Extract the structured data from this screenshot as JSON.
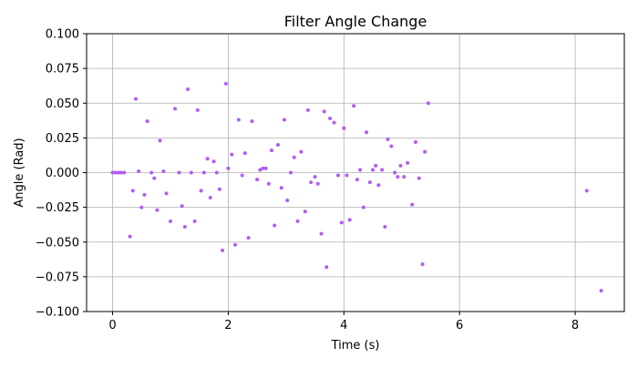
{
  "chart_data": {
    "type": "scatter",
    "title": "Filter Angle Change",
    "xlabel": "Time (s)",
    "ylabel": "Angle (Rad)",
    "xlim": [
      -0.45,
      8.85
    ],
    "ylim": [
      -0.1,
      0.1
    ],
    "x_ticks": [
      0,
      2,
      4,
      6,
      8
    ],
    "y_ticks": [
      -0.1,
      -0.075,
      -0.05,
      -0.025,
      0.0,
      0.025,
      0.05,
      0.075,
      0.1
    ],
    "x_tick_labels": [
      "0",
      "2",
      "4",
      "6",
      "8"
    ],
    "y_tick_labels": [
      "−0.100",
      "−0.075",
      "−0.050",
      "−0.025",
      "0.000",
      "0.025",
      "0.050",
      "0.075",
      "0.100"
    ],
    "grid": true,
    "marker_color": "#b05cf5",
    "series": [
      {
        "points": [
          [
            0.0,
            0.0
          ],
          [
            0.05,
            0.0
          ],
          [
            0.1,
            0.0
          ],
          [
            0.15,
            0.0
          ],
          [
            0.2,
            0.0
          ],
          [
            0.3,
            -0.046
          ],
          [
            0.35,
            -0.013
          ],
          [
            0.4,
            0.053
          ],
          [
            0.45,
            0.001
          ],
          [
            0.5,
            -0.025
          ],
          [
            0.55,
            -0.016
          ],
          [
            0.6,
            0.037
          ],
          [
            0.67,
            0.0
          ],
          [
            0.72,
            -0.004
          ],
          [
            0.77,
            -0.027
          ],
          [
            0.82,
            0.023
          ],
          [
            0.88,
            0.001
          ],
          [
            0.93,
            -0.015
          ],
          [
            1.0,
            -0.035
          ],
          [
            1.08,
            0.046
          ],
          [
            1.15,
            0.0
          ],
          [
            1.2,
            -0.024
          ],
          [
            1.25,
            -0.039
          ],
          [
            1.3,
            0.06
          ],
          [
            1.36,
            0.0
          ],
          [
            1.42,
            -0.035
          ],
          [
            1.47,
            0.045
          ],
          [
            1.53,
            -0.013
          ],
          [
            1.58,
            0.0
          ],
          [
            1.64,
            0.01
          ],
          [
            1.69,
            -0.018
          ],
          [
            1.75,
            0.008
          ],
          [
            1.8,
            0.0
          ],
          [
            1.85,
            -0.012
          ],
          [
            1.9,
            -0.056
          ],
          [
            1.96,
            0.064
          ],
          [
            2.0,
            0.003
          ],
          [
            2.06,
            0.013
          ],
          [
            2.12,
            -0.052
          ],
          [
            2.18,
            0.038
          ],
          [
            2.24,
            -0.002
          ],
          [
            2.29,
            0.014
          ],
          [
            2.35,
            -0.047
          ],
          [
            2.41,
            0.037
          ],
          [
            2.5,
            -0.005
          ],
          [
            2.55,
            0.002
          ],
          [
            2.6,
            0.003
          ],
          [
            2.65,
            0.003
          ],
          [
            2.7,
            -0.008
          ],
          [
            2.75,
            0.016
          ],
          [
            2.8,
            -0.038
          ],
          [
            2.86,
            0.02
          ],
          [
            2.92,
            -0.011
          ],
          [
            2.97,
            0.038
          ],
          [
            3.02,
            -0.02
          ],
          [
            3.08,
            0.0
          ],
          [
            3.14,
            0.011
          ],
          [
            3.2,
            -0.035
          ],
          [
            3.26,
            0.015
          ],
          [
            3.33,
            -0.028
          ],
          [
            3.38,
            0.045
          ],
          [
            3.43,
            -0.007
          ],
          [
            3.5,
            -0.003
          ],
          [
            3.55,
            -0.008
          ],
          [
            3.61,
            -0.044
          ],
          [
            3.66,
            0.044
          ],
          [
            3.7,
            -0.068
          ],
          [
            3.76,
            0.039
          ],
          [
            3.83,
            0.036
          ],
          [
            3.9,
            -0.002
          ],
          [
            3.96,
            -0.036
          ],
          [
            4.0,
            0.032
          ],
          [
            4.05,
            -0.002
          ],
          [
            4.1,
            -0.034
          ],
          [
            4.17,
            0.048
          ],
          [
            4.23,
            -0.005
          ],
          [
            4.28,
            0.002
          ],
          [
            4.34,
            -0.025
          ],
          [
            4.39,
            0.029
          ],
          [
            4.45,
            -0.007
          ],
          [
            4.5,
            0.002
          ],
          [
            4.55,
            0.005
          ],
          [
            4.6,
            -0.009
          ],
          [
            4.66,
            0.002
          ],
          [
            4.71,
            -0.039
          ],
          [
            4.76,
            0.024
          ],
          [
            4.82,
            0.019
          ],
          [
            4.88,
            0.0
          ],
          [
            4.93,
            -0.003
          ],
          [
            4.98,
            0.005
          ],
          [
            5.04,
            -0.003
          ],
          [
            5.1,
            0.007
          ],
          [
            5.18,
            -0.023
          ],
          [
            5.24,
            0.022
          ],
          [
            5.3,
            -0.004
          ],
          [
            5.36,
            -0.066
          ],
          [
            5.4,
            0.015
          ],
          [
            5.46,
            0.05
          ],
          [
            8.2,
            -0.013
          ],
          [
            8.45,
            -0.085
          ]
        ]
      }
    ]
  }
}
